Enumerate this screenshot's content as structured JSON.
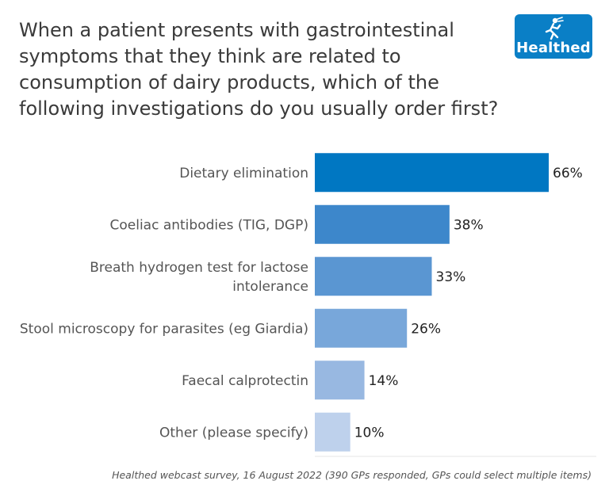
{
  "title": "When a patient presents with gastrointestinal symptoms that they think are related to consumption of dairy products, which of the following investigations do you usually order first?",
  "logo": {
    "text": "Healthed",
    "icon": "running-figure-icon",
    "color": "#0a7fc6"
  },
  "footnote": "Healthed webcast survey, 16 August 2022 (390 GPs responded, GPs could select multiple items)",
  "chart_data": {
    "type": "bar",
    "orientation": "horizontal",
    "title": "When a patient presents with gastrointestinal symptoms that they think are related to consumption of dairy products, which of the following investigations do you usually order first?",
    "categories": [
      "Dietary elimination",
      "Coeliac antibodies (TIG, DGP)",
      "Breath hydrogen test for lactose intolerance",
      "Stool microscopy for parasites (eg Giardia)",
      "Faecal calprotectin",
      "Other (please specify)"
    ],
    "category_lines": [
      [
        "Dietary elimination"
      ],
      [
        "Coeliac antibodies (TIG, DGP)"
      ],
      [
        "Breath hydrogen test for lactose",
        "intolerance"
      ],
      [
        "Stool microscopy for parasites (eg Giardia)"
      ],
      [
        "Faecal calprotectin"
      ],
      [
        "Other (please specify)"
      ]
    ],
    "values": [
      66,
      38,
      33,
      26,
      14,
      10
    ],
    "value_labels": [
      "66%",
      "38%",
      "33%",
      "26%",
      "14%",
      "10%"
    ],
    "colors": [
      "#0077c2",
      "#3d87cb",
      "#5a96d2",
      "#78a7da",
      "#98b8e1",
      "#bed1ec"
    ],
    "xlim": [
      0,
      66
    ],
    "grid": false,
    "legend": "none"
  }
}
